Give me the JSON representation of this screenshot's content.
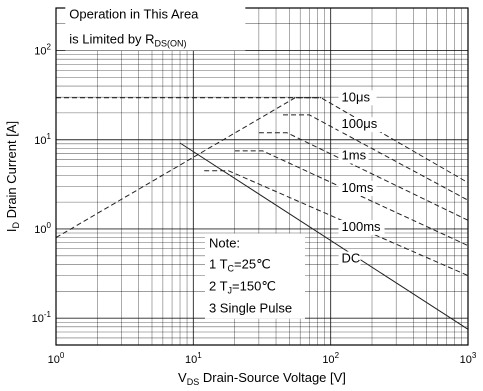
{
  "chart_data": {
    "type": "line",
    "title": "",
    "xscale": "log",
    "yscale": "log",
    "xlim": [
      1,
      1000
    ],
    "ylim": [
      0.05,
      300
    ],
    "grid": true,
    "x_ticks": [
      {
        "value": 1,
        "base": "10",
        "exp": "0"
      },
      {
        "value": 10,
        "base": "10",
        "exp": "1"
      },
      {
        "value": 100,
        "base": "10",
        "exp": "2"
      },
      {
        "value": 1000,
        "base": "10",
        "exp": "3"
      }
    ],
    "y_ticks": [
      {
        "value": 0.1,
        "base": "10",
        "exp": "-1"
      },
      {
        "value": 1,
        "base": "10",
        "exp": "0"
      },
      {
        "value": 10,
        "base": "10",
        "exp": "1"
      },
      {
        "value": 100,
        "base": "10",
        "exp": "2"
      }
    ],
    "xlabel": {
      "pre": "V",
      "sub": "DS",
      "post": " Drain-Source Voltage [V]"
    },
    "ylabel": {
      "pre": "I",
      "sub": "D",
      "post": " Drain Current [A]"
    },
    "annotation": {
      "line1": "Operation in This Area",
      "line2_pre": "is Limited by R",
      "line2_sub": "DS(ON)"
    },
    "note": {
      "title": "Note:",
      "line1_pre": "1 T",
      "line1_sub": "C",
      "line1_post": "=25℃",
      "line2_pre": "2 T",
      "line2_sub": "J",
      "line2_post": "=150℃",
      "line3": "3 Single Pulse"
    },
    "series": [
      {
        "name": "10μs",
        "style": "dashed",
        "x": [
          1,
          55,
          85,
          1000
        ],
        "y": [
          0.8,
          29.5,
          29.5,
          3.3
        ]
      },
      {
        "name": "100μs",
        "style": "dashed",
        "x": [
          45,
          70,
          1000
        ],
        "y": [
          19,
          19,
          2.1
        ]
      },
      {
        "name": "1ms",
        "style": "dashed",
        "x": [
          30,
          48,
          1000
        ],
        "y": [
          12,
          12,
          1.25
        ]
      },
      {
        "name": "10ms",
        "style": "dashed",
        "x": [
          20,
          32,
          1000
        ],
        "y": [
          7.5,
          7.5,
          0.65
        ]
      },
      {
        "name": "100ms",
        "style": "dashed",
        "x": [
          12,
          18,
          1000
        ],
        "y": [
          4.5,
          4.5,
          0.3
        ]
      },
      {
        "name": "DC",
        "style": "solid",
        "x": [
          8,
          1000
        ],
        "y": [
          9.2,
          0.075
        ]
      },
      {
        "name": "",
        "style": "dashed",
        "x": [
          1,
          85
        ],
        "y": [
          29.5,
          29.5
        ]
      }
    ]
  }
}
